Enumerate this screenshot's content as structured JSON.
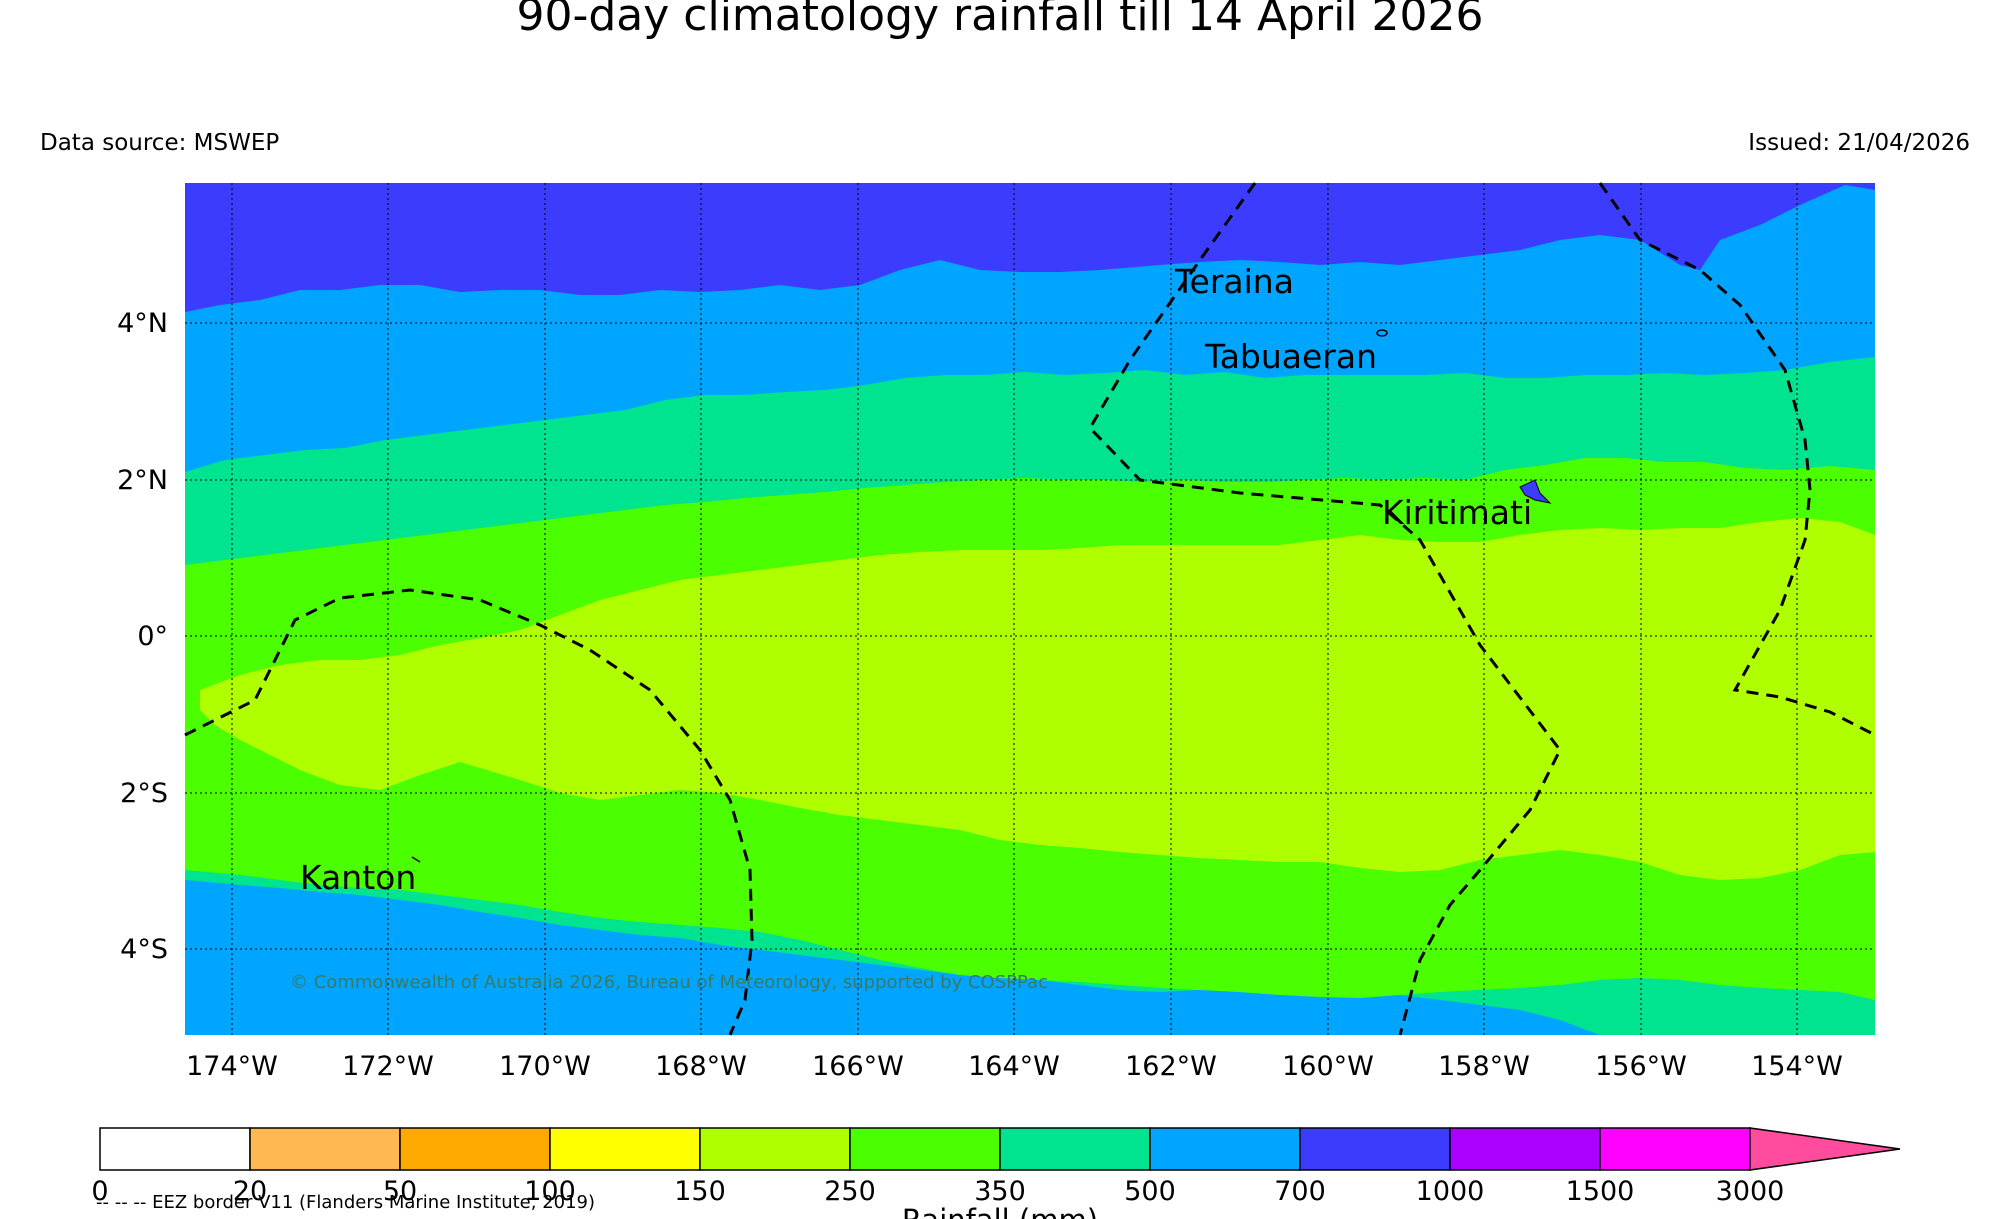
{
  "title": "90-day climatology rainfall till 14 April 2026",
  "data_source": "Data source: MSWEP",
  "issued": "Issued: 21/04/2026",
  "lon_ticks": [
    "174°W",
    "172°W",
    "170°W",
    "168°W",
    "166°W",
    "164°W",
    "162°W",
    "160°W",
    "158°W",
    "156°W",
    "154°W"
  ],
  "lat_ticks": [
    "4°N",
    "2°N",
    "0°",
    "2°S",
    "4°S"
  ],
  "places": {
    "teraina": "Teraina",
    "tabuaeran": "Tabuaeran",
    "kiritimati": "Kiritimati",
    "kanton": "Kanton"
  },
  "copyright": "© Commonwealth of Australia 2026, Bureau of Meteorology, supported by COSPPac",
  "legend_eez": "-- -- -- EEZ border V11 (Flanders Marine Institute, 2019)",
  "colorbar": {
    "label": "Rainfall (mm)",
    "ticks": [
      "0",
      "20",
      "50",
      "100",
      "150",
      "250",
      "350",
      "500",
      "700",
      "1000",
      "1500",
      "3000"
    ],
    "colors": [
      "#ffffff",
      "#ffb852",
      "#ffaa00",
      "#ffff00",
      "#b0ff00",
      "#4cff00",
      "#00e38f",
      "#00a5ff",
      "#3c3cff",
      "#aa00ff",
      "#ff00ff",
      "#ff4c9e"
    ]
  }
}
